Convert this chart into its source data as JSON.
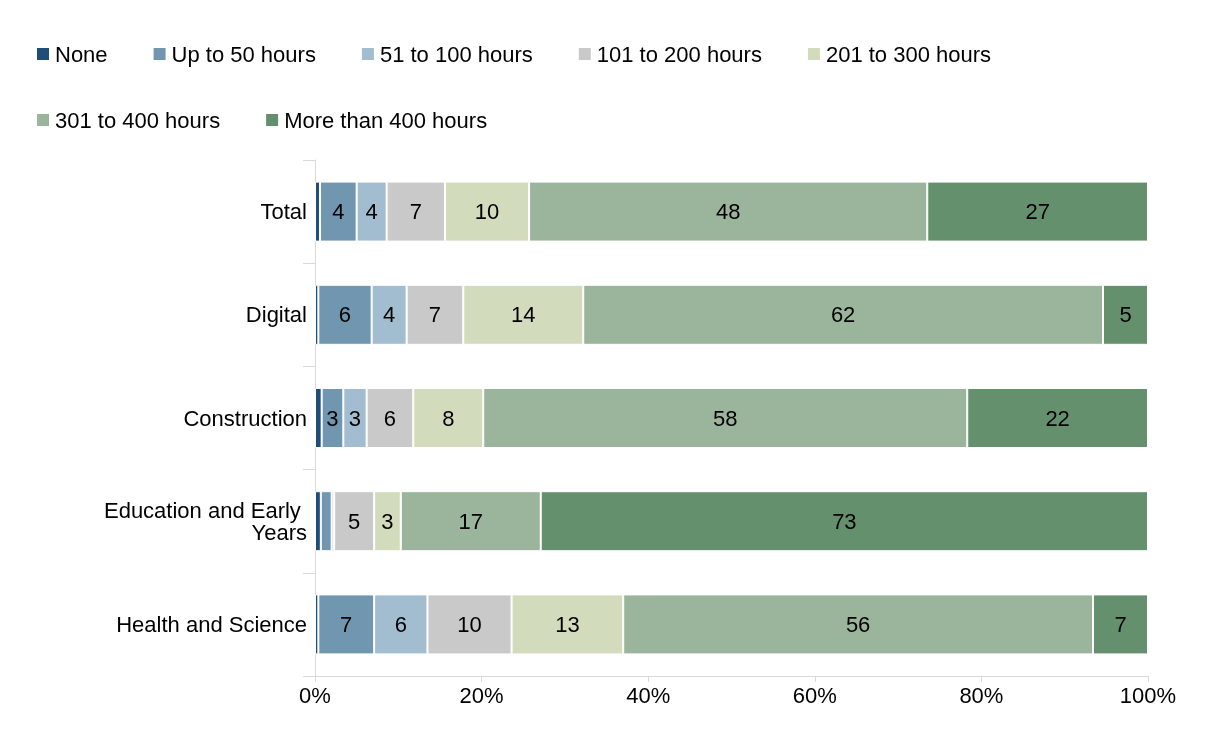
{
  "chart_data": {
    "type": "bar",
    "orientation": "horizontal",
    "stacked": true,
    "legend": "top",
    "grid": false,
    "categories": [
      "Total",
      "Digital",
      "Construction",
      "Education and Early Years",
      "Health and Science"
    ],
    "xlim": [
      0,
      100
    ],
    "xticks": [
      {
        "value": 0,
        "label": "0%"
      },
      {
        "value": 20,
        "label": "20%"
      },
      {
        "value": 40,
        "label": "40%"
      },
      {
        "value": 60,
        "label": "60%"
      },
      {
        "value": 80,
        "label": "80%"
      },
      {
        "value": 100,
        "label": "100%"
      }
    ],
    "series": [
      {
        "name": "None",
        "color": "#1f4e79",
        "values": [
          0.6,
          0.4,
          0.8,
          0.7,
          0.4
        ],
        "value_labels": [
          null,
          null,
          null,
          null,
          null
        ]
      },
      {
        "name": "Up to 50 hours",
        "color": "#7096b0",
        "values": [
          4.4,
          6.4,
          2.6,
          1.3,
          6.7
        ],
        "value_labels": [
          "4",
          "6",
          "3",
          null,
          "7"
        ]
      },
      {
        "name": "51 to 100 hours",
        "color": "#a2bdd0",
        "values": [
          3.6,
          4.2,
          2.8,
          0.3,
          6.4
        ],
        "value_labels": [
          "4",
          "4",
          "3",
          null,
          "6"
        ]
      },
      {
        "name": "101 to 200 hours",
        "color": "#c9c9c9",
        "values": [
          7.0,
          6.8,
          5.6,
          4.8,
          10.1
        ],
        "value_labels": [
          "7",
          "7",
          "6",
          "5",
          "10"
        ]
      },
      {
        "name": "201 to 300 hours",
        "color": "#d2dcbc",
        "values": [
          10.1,
          14.4,
          8.4,
          3.2,
          13.4
        ],
        "value_labels": [
          "10",
          "14",
          "8",
          "3",
          "13"
        ]
      },
      {
        "name": "301 to 400 hours",
        "color": "#9bb59c",
        "values": [
          47.8,
          62.4,
          58.1,
          16.8,
          56.4
        ],
        "value_labels": [
          "48",
          "62",
          "58",
          "17",
          "56"
        ]
      },
      {
        "name": "More than 400 hours",
        "color": "#64906e",
        "values": [
          26.5,
          5.4,
          21.7,
          72.9,
          6.6
        ],
        "value_labels": [
          "27",
          "5",
          "22",
          "73",
          "7"
        ]
      }
    ]
  }
}
